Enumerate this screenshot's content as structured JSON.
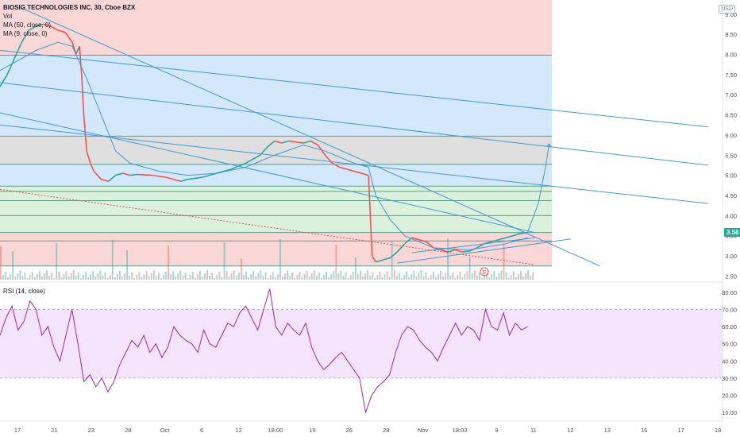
{
  "legend": {
    "title": "BIOSIG TECHNOLOGIES INC, 30, Cboe BZX",
    "vol": "Vol",
    "ma50": "MA (50, close, 0)",
    "ma9": "MA (9, close, 0)"
  },
  "rsi_legend": "RSI (14, close)",
  "currency": "USD",
  "last_price": "3.58",
  "event_marker": "E",
  "colors": {
    "zone_red": "#f9d3d3",
    "zone_blue": "#cfe6fb",
    "zone_gray": "#dcdcdc",
    "zone_green": "#d8f0d8",
    "trendline": "#3d9ad6",
    "rsi_line": "#9c27b0",
    "rsi_band": "#f3e3fb",
    "candle_up": "#26a69a",
    "candle_down": "#ef5350",
    "price_tag": "#22ab94"
  },
  "chart_data": [
    {
      "type": "line",
      "name": "price",
      "y_ticks": [
        "9.00",
        "8.50",
        "8.00",
        "7.50",
        "7.00",
        "6.50",
        "6.00",
        "5.50",
        "5.00",
        "4.50",
        "4.00",
        "3.50",
        "3.00",
        "2.50"
      ],
      "x_ticks": [
        "17",
        "21",
        "23",
        "28",
        "Oct",
        "6",
        "12",
        "18:00",
        "19",
        "26",
        "28",
        "Nov",
        "18:00",
        "9",
        "11",
        "12",
        "13",
        "16",
        "17",
        "18"
      ],
      "ylim": [
        2.35,
        9.35
      ],
      "price_path": [
        [
          0.0,
          7.2
        ],
        [
          0.01,
          7.5
        ],
        [
          0.02,
          7.9
        ],
        [
          0.03,
          8.3
        ],
        [
          0.04,
          8.6
        ],
        [
          0.05,
          8.7
        ],
        [
          0.06,
          8.75
        ],
        [
          0.07,
          8.7
        ],
        [
          0.08,
          8.6
        ],
        [
          0.09,
          8.55
        ],
        [
          0.1,
          8.3
        ],
        [
          0.105,
          8.0
        ],
        [
          0.11,
          8.2
        ],
        [
          0.113,
          7.5
        ],
        [
          0.116,
          6.5
        ],
        [
          0.12,
          5.6
        ],
        [
          0.125,
          5.3
        ],
        [
          0.13,
          5.1
        ],
        [
          0.14,
          4.9
        ],
        [
          0.15,
          4.85
        ],
        [
          0.16,
          5.0
        ],
        [
          0.17,
          5.05
        ],
        [
          0.18,
          5.0
        ],
        [
          0.19,
          5.02
        ],
        [
          0.21,
          5.0
        ],
        [
          0.23,
          4.95
        ],
        [
          0.25,
          4.85
        ],
        [
          0.26,
          4.9
        ],
        [
          0.28,
          4.95
        ],
        [
          0.3,
          5.05
        ],
        [
          0.32,
          5.15
        ],
        [
          0.34,
          5.3
        ],
        [
          0.36,
          5.5
        ],
        [
          0.37,
          5.7
        ],
        [
          0.38,
          5.85
        ],
        [
          0.39,
          5.8
        ],
        [
          0.4,
          5.85
        ],
        [
          0.42,
          5.8
        ],
        [
          0.43,
          5.85
        ],
        [
          0.44,
          5.75
        ],
        [
          0.45,
          5.5
        ],
        [
          0.46,
          5.3
        ],
        [
          0.47,
          5.2
        ],
        [
          0.48,
          5.15
        ],
        [
          0.49,
          5.1
        ],
        [
          0.5,
          5.05
        ],
        [
          0.51,
          5.0
        ],
        [
          0.515,
          3.0
        ],
        [
          0.52,
          2.85
        ],
        [
          0.53,
          2.9
        ],
        [
          0.54,
          2.95
        ],
        [
          0.55,
          3.1
        ],
        [
          0.56,
          3.3
        ],
        [
          0.57,
          3.45
        ],
        [
          0.58,
          3.4
        ],
        [
          0.59,
          3.35
        ],
        [
          0.6,
          3.2
        ],
        [
          0.61,
          3.15
        ],
        [
          0.62,
          3.1
        ],
        [
          0.63,
          3.15
        ],
        [
          0.64,
          3.1
        ],
        [
          0.65,
          3.12
        ],
        [
          0.66,
          3.2
        ],
        [
          0.67,
          3.3
        ],
        [
          0.68,
          3.35
        ],
        [
          0.69,
          3.4
        ],
        [
          0.7,
          3.45
        ],
        [
          0.71,
          3.5
        ],
        [
          0.72,
          3.55
        ],
        [
          0.73,
          3.58
        ]
      ],
      "ma_path": [
        [
          0.0,
          7.6
        ],
        [
          0.05,
          8.1
        ],
        [
          0.08,
          8.3
        ],
        [
          0.1,
          8.2
        ],
        [
          0.12,
          7.4
        ],
        [
          0.14,
          6.5
        ],
        [
          0.16,
          5.6
        ],
        [
          0.18,
          5.3
        ],
        [
          0.22,
          5.1
        ],
        [
          0.26,
          5.0
        ],
        [
          0.3,
          5.05
        ],
        [
          0.34,
          5.2
        ],
        [
          0.38,
          5.5
        ],
        [
          0.42,
          5.75
        ],
        [
          0.45,
          5.6
        ],
        [
          0.49,
          5.3
        ],
        [
          0.51,
          5.2
        ],
        [
          0.52,
          4.5
        ],
        [
          0.54,
          3.9
        ],
        [
          0.56,
          3.5
        ],
        [
          0.6,
          3.2
        ],
        [
          0.65,
          3.15
        ],
        [
          0.7,
          3.3
        ],
        [
          0.73,
          3.45
        ]
      ],
      "projection_path": [
        [
          0.73,
          3.58
        ],
        [
          0.745,
          4.3
        ],
        [
          0.755,
          5.2
        ],
        [
          0.76,
          5.78
        ]
      ],
      "horizontal_levels": [
        7.98,
        5.97,
        5.27,
        4.73,
        4.6,
        4.37,
        4.0,
        3.58,
        3.37,
        2.75
      ],
      "zones": [
        {
          "y0": 7.98,
          "y1": 9.35,
          "color": "zone_red"
        },
        {
          "y0": 5.97,
          "y1": 7.98,
          "color": "zone_blue"
        },
        {
          "y0": 5.27,
          "y1": 5.97,
          "color": "zone_gray"
        },
        {
          "y0": 4.73,
          "y1": 5.27,
          "color": "zone_blue"
        },
        {
          "y0": 3.58,
          "y1": 4.73,
          "color": "zone_green"
        },
        {
          "y0": 2.75,
          "y1": 3.58,
          "color": "zone_red"
        }
      ],
      "trendlines": [
        [
          [
            0.0,
            8.1
          ],
          [
            0.98,
            6.2
          ]
        ],
        [
          [
            0.03,
            9.15
          ],
          [
            0.83,
            2.75
          ]
        ],
        [
          [
            0.0,
            6.55
          ],
          [
            0.74,
            3.58
          ]
        ],
        [
          [
            0.0,
            6.25
          ],
          [
            0.98,
            4.3
          ]
        ],
        [
          [
            0.0,
            7.3
          ],
          [
            0.98,
            5.25
          ]
        ],
        [
          [
            0.55,
            2.82
          ],
          [
            0.79,
            3.42
          ]
        ],
        [
          [
            0.57,
            3.08
          ],
          [
            0.74,
            3.45
          ]
        ]
      ],
      "dotted_trendline": [
        [
          0.0,
          4.65
        ],
        [
          0.74,
          2.78
        ]
      ]
    },
    {
      "type": "line",
      "name": "RSI",
      "y_ticks": [
        "80.00",
        "70.00",
        "60.00",
        "50.00",
        "40.00",
        "30.00",
        "20.00",
        "10.00"
      ],
      "ylim": [
        5,
        85
      ],
      "band": [
        30,
        70
      ],
      "values": [
        55,
        65,
        72,
        58,
        63,
        75,
        70,
        55,
        60,
        48,
        40,
        55,
        70,
        50,
        28,
        32,
        25,
        30,
        22,
        28,
        38,
        45,
        52,
        48,
        55,
        45,
        50,
        42,
        48,
        60,
        55,
        52,
        50,
        45,
        58,
        50,
        48,
        55,
        62,
        60,
        68,
        72,
        65,
        58,
        70,
        82,
        60,
        55,
        62,
        58,
        55,
        62,
        48,
        40,
        35,
        38,
        42,
        45,
        40,
        35,
        30,
        10,
        20,
        25,
        28,
        32,
        45,
        55,
        60,
        58,
        52,
        48,
        45,
        40,
        48,
        55,
        62,
        55,
        60,
        58,
        52,
        70,
        60,
        58,
        68,
        55,
        62,
        58,
        60
      ]
    }
  ]
}
